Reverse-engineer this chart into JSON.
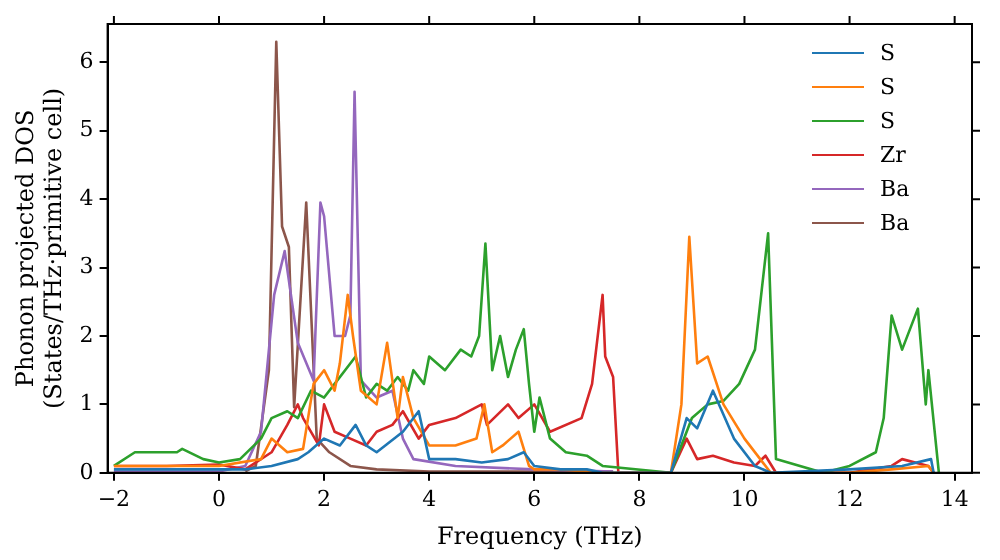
{
  "chart_data": {
    "type": "line",
    "xlabel": "Frequency (THz)",
    "ylabel": "Phonon projected DOS\n(States/THz·primitive cell)",
    "xlim": [
      -2.12,
      14.33
    ],
    "ylim": [
      0,
      6.56
    ],
    "xticks": [
      {
        "value": -2,
        "label": "−2"
      },
      0,
      2,
      4,
      6,
      8,
      10,
      12,
      14
    ],
    "yticks": [
      0,
      1,
      2,
      3,
      4,
      5,
      6
    ],
    "grid": false,
    "legend": "top right",
    "marker": "none",
    "line_style": "solid",
    "series": [
      {
        "name": "S",
        "color": "#1f77b4",
        "x": [
          -2,
          -1,
          0,
          0.5,
          1.0,
          1.5,
          1.7,
          2.0,
          2.3,
          2.6,
          2.8,
          3.0,
          3.5,
          3.8,
          4.0,
          4.5,
          5.0,
          5.5,
          5.8,
          6.0,
          6.5,
          7.0,
          7.3,
          8.6,
          8.9,
          9.1,
          9.4,
          9.8,
          10.2,
          10.5,
          12.0,
          13.0,
          13.55,
          13.6
        ],
        "values": [
          0.05,
          0.05,
          0.05,
          0.05,
          0.1,
          0.2,
          0.3,
          0.5,
          0.4,
          0.7,
          0.4,
          0.3,
          0.6,
          0.9,
          0.2,
          0.2,
          0.15,
          0.2,
          0.3,
          0.1,
          0.05,
          0.05,
          0,
          0,
          0.8,
          0.65,
          1.2,
          0.5,
          0.1,
          0,
          0.05,
          0.1,
          0.2,
          0
        ]
      },
      {
        "name": "S",
        "color": "#ff7f0e",
        "x": [
          -2,
          -1,
          0,
          0.8,
          1.0,
          1.3,
          1.6,
          1.8,
          2.0,
          2.2,
          2.3,
          2.45,
          2.55,
          2.7,
          3.0,
          3.2,
          3.4,
          3.5,
          3.7,
          4.0,
          4.5,
          4.9,
          5.05,
          5.2,
          5.4,
          5.7,
          5.9,
          6.0,
          6.5,
          7.3,
          8.6,
          8.8,
          8.95,
          9.1,
          9.3,
          9.6,
          10.0,
          10.3,
          10.5,
          12.0,
          12.8,
          13.5,
          13.6
        ],
        "values": [
          0.1,
          0.1,
          0.1,
          0.2,
          0.5,
          0.3,
          0.35,
          1.3,
          1.5,
          1.2,
          1.6,
          2.6,
          2.0,
          1.2,
          1.0,
          1.9,
          0.8,
          1.4,
          0.8,
          0.4,
          0.4,
          0.5,
          1.0,
          0.3,
          0.4,
          0.6,
          0.1,
          0.05,
          0.05,
          0,
          0,
          1.0,
          3.45,
          1.6,
          1.7,
          1.0,
          0.5,
          0.2,
          0,
          0,
          0.05,
          0.1,
          0
        ]
      },
      {
        "name": "S",
        "color": "#2ca02c",
        "x": [
          -2,
          -1.6,
          -0.8,
          -0.7,
          -0.3,
          0,
          0.4,
          0.8,
          1.0,
          1.3,
          1.5,
          1.75,
          2.0,
          2.2,
          2.4,
          2.6,
          2.8,
          3.0,
          3.2,
          3.4,
          3.6,
          3.7,
          3.9,
          4.0,
          4.3,
          4.6,
          4.8,
          4.95,
          5.07,
          5.2,
          5.35,
          5.5,
          5.65,
          5.8,
          5.9,
          6.0,
          6.1,
          6.3,
          6.6,
          7.0,
          7.3,
          8.6,
          9.0,
          9.3,
          9.6,
          9.9,
          10.2,
          10.45,
          10.6,
          11.5,
          12.0,
          12.5,
          12.65,
          12.8,
          13.0,
          13.3,
          13.45,
          13.5,
          13.7
        ],
        "values": [
          0.1,
          0.3,
          0.3,
          0.35,
          0.2,
          0.15,
          0.2,
          0.5,
          0.8,
          0.9,
          0.8,
          1.2,
          1.1,
          1.3,
          1.5,
          1.7,
          1.1,
          1.3,
          1.2,
          1.4,
          1.2,
          1.5,
          1.3,
          1.7,
          1.5,
          1.8,
          1.7,
          2.0,
          3.35,
          1.5,
          2.0,
          1.4,
          1.8,
          2.1,
          1.3,
          0.6,
          1.1,
          0.5,
          0.3,
          0.25,
          0.1,
          0,
          0.8,
          1.0,
          1.05,
          1.3,
          1.8,
          3.5,
          0.2,
          0,
          0.1,
          0.3,
          0.8,
          2.3,
          1.8,
          2.4,
          1.0,
          1.5,
          0
        ]
      },
      {
        "name": "Zr",
        "color": "#d62728",
        "x": [
          -2,
          -1,
          0,
          0.5,
          1.0,
          1.3,
          1.5,
          1.6,
          1.9,
          2.0,
          2.2,
          2.5,
          2.8,
          3.0,
          3.3,
          3.5,
          3.8,
          4.0,
          4.5,
          5.0,
          5.1,
          5.5,
          5.7,
          6.0,
          6.3,
          6.9,
          7.1,
          7.3,
          7.35,
          7.5,
          7.6,
          8.6,
          8.9,
          9.1,
          9.4,
          9.8,
          10.2,
          10.4,
          10.6,
          12.0,
          12.8,
          13.0,
          13.5,
          13.6
        ],
        "values": [
          0.1,
          0.1,
          0.12,
          0.05,
          0.3,
          0.7,
          1.0,
          0.8,
          0.4,
          1.0,
          0.6,
          0.5,
          0.4,
          0.6,
          0.7,
          0.9,
          0.5,
          0.7,
          0.8,
          1.0,
          0.7,
          1.0,
          0.8,
          1.0,
          0.6,
          0.8,
          1.3,
          2.6,
          1.7,
          1.4,
          0,
          0,
          0.5,
          0.2,
          0.25,
          0.15,
          0.1,
          0.25,
          0,
          0,
          0.1,
          0.2,
          0.1,
          0
        ]
      },
      {
        "name": "Ba",
        "color": "#9467bd",
        "x": [
          -2,
          -1,
          0,
          0.5,
          0.8,
          1.05,
          1.25,
          1.5,
          1.8,
          1.93,
          2.0,
          2.2,
          2.4,
          2.5,
          2.58,
          2.7,
          3.0,
          3.3,
          3.5,
          3.7,
          4.5,
          6.0,
          7.5
        ],
        "values": [
          0.02,
          0.02,
          0.02,
          0.1,
          0.6,
          2.6,
          3.24,
          1.9,
          1.35,
          3.95,
          3.75,
          2.0,
          2.0,
          2.3,
          5.57,
          1.35,
          1.1,
          1.2,
          0.5,
          0.2,
          0.1,
          0.05,
          0.02
        ]
      },
      {
        "name": "Ba",
        "color": "#8c564b",
        "x": [
          0.5,
          0.7,
          0.95,
          1.09,
          1.2,
          1.33,
          1.43,
          1.66,
          1.86,
          2.1,
          2.5,
          3.0,
          4.0,
          7.5
        ],
        "values": [
          0.02,
          0.1,
          1.5,
          6.3,
          3.6,
          3.3,
          0.96,
          3.95,
          0.5,
          0.3,
          0.1,
          0.05,
          0.02,
          0.02
        ]
      }
    ]
  }
}
